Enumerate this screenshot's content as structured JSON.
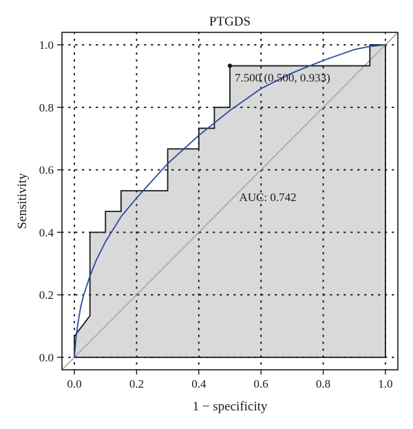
{
  "chart_data": {
    "type": "line",
    "title": "PTGDS",
    "xlabel": "1 − specificity",
    "ylabel": "Sensitivity",
    "xlim": [
      -0.04,
      1.04
    ],
    "ylim": [
      -0.04,
      1.04
    ],
    "x_ticks": [
      0.0,
      0.2,
      0.4,
      0.6,
      0.8,
      1.0
    ],
    "y_ticks": [
      0.0,
      0.2,
      0.4,
      0.6,
      0.8,
      1.0
    ],
    "x_tick_labels": [
      "0.0",
      "0.2",
      "0.4",
      "0.6",
      "0.8",
      "1.0"
    ],
    "y_tick_labels": [
      "0.0",
      "0.2",
      "0.4",
      "0.6",
      "0.8",
      "1.0"
    ],
    "grid": "dotted",
    "series": [
      {
        "name": "",
        "kind": "empirical-roc-step",
        "color": "#1a1a1a",
        "fill": "#d9d9d9",
        "x": [
          0.0,
          0.0,
          0.05,
          0.05,
          0.1,
          0.1,
          0.15,
          0.15,
          0.3,
          0.3,
          0.4,
          0.4,
          0.45,
          0.45,
          0.5,
          0.5,
          0.95,
          0.95,
          1.0
        ],
        "y": [
          0.0,
          0.067,
          0.133,
          0.4,
          0.4,
          0.467,
          0.467,
          0.533,
          0.533,
          0.667,
          0.667,
          0.733,
          0.733,
          0.8,
          0.8,
          0.933,
          0.933,
          1.0,
          1.0
        ]
      },
      {
        "name": "",
        "kind": "smoothed-roc",
        "color": "#2b4aa0",
        "x": [
          0.0,
          0.005,
          0.01,
          0.02,
          0.03,
          0.05,
          0.07,
          0.1,
          0.15,
          0.2,
          0.3,
          0.4,
          0.5,
          0.6,
          0.7,
          0.8,
          0.9,
          0.95,
          1.0
        ],
        "y": [
          0.0,
          0.06,
          0.1,
          0.16,
          0.2,
          0.26,
          0.31,
          0.37,
          0.45,
          0.51,
          0.62,
          0.71,
          0.79,
          0.86,
          0.91,
          0.95,
          0.985,
          0.995,
          1.0
        ]
      },
      {
        "name": "",
        "kind": "reference-diagonal",
        "color": "#a6a6a6",
        "x": [
          -0.04,
          1.04
        ],
        "y": [
          -0.04,
          1.04
        ]
      }
    ],
    "threshold_point": {
      "x": 0.5,
      "y": 0.933,
      "label": "7.500 (0.500, 0.933)"
    },
    "annotations": [
      {
        "text": "AUC: 0.742",
        "x": 0.53,
        "y": 0.5
      }
    ],
    "colors": {
      "step_line": "#1a1a1a",
      "fill": "#d9d9d9",
      "smooth_curve": "#2b4aa0",
      "diagonal": "#a6a6a6",
      "grid": "#1a1a1a",
      "frame": "#1a1a1a"
    }
  }
}
